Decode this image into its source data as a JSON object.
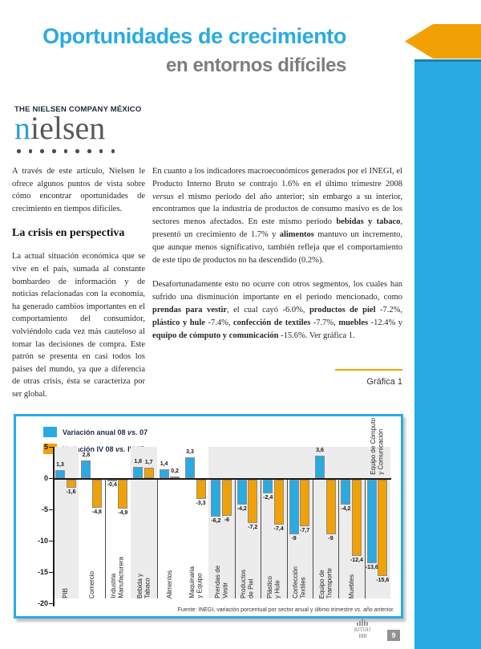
{
  "page": {
    "title_line1": "Oportunidades de crecimiento",
    "title_line2": "en entornos difíciles",
    "company_label": "THE NIELSEN COMPANY MÉXICO",
    "logo_first_letter": "n",
    "logo_rest": "ielsen",
    "footer_logo_text": "amai",
    "page_number": "9"
  },
  "colors": {
    "accent_blue": "#29ABE2",
    "accent_orange": "#F2A105",
    "title_gray": "#7C7E80",
    "band_gray": "#ECECEC",
    "bar_border": "#8C8C8C"
  },
  "article": {
    "intro": "A través de este artículo, Nielsen le ofrece algunos puntos de vista sobre cómo encontrar oportunidades de crecimiento en tiempos difíciles.",
    "section_heading": "La crisis en perspectiva",
    "left_paragraph": "La actual situación económica que se vive en el país, sumada al constante bombardeo de información y de noticias relacionadas con la economía, ha generado cambios importantes en el comportamiento del consumidor, volviéndolo cada vez más cauteloso al tomar las decisiones de compra. Este patrón se presenta en casi todos los países del mundo, ya que a diferencia de otras crisis, ésta se caracteriza por ser global.",
    "right_para1_segments": [
      {
        "t": "En cuanto a los indicadores macroeconómicos generados por el INEGI, el Producto Interno Bruto se contrajo 1.6% en el último trimestre 2008 "
      },
      {
        "t": "versus",
        "i": true
      },
      {
        "t": " el mismo periodo del año anterior; sin embargo a su interior, encontramos que la industria de productos de consumo masivo es de los sectores menos afectados. En este mismo periodo "
      },
      {
        "t": "bebidas y tabaco",
        "b": true
      },
      {
        "t": ",  presentó un crecimiento de 1.7% y "
      },
      {
        "t": "alimentos",
        "b": true
      },
      {
        "t": " mantuvo un incremento, que aunque menos significativo, también refleja que el comportamiento de este tipo de productos no ha descendido (0.2%)."
      }
    ],
    "right_para2_segments": [
      {
        "t": "Desafortunadamente esto no ocurre con otros segmentos, los cuales han sufrido una disminución importante en el periodo mencionado, como "
      },
      {
        "t": "prendas para vestir",
        "b": true
      },
      {
        "t": ", el cual cayó -6.0%, "
      },
      {
        "t": "productos de piel",
        "b": true
      },
      {
        "t": " -7.2%, "
      },
      {
        "t": "plástico y hule",
        "b": true
      },
      {
        "t": " -7.4%, "
      },
      {
        "t": "confección de textiles",
        "b": true
      },
      {
        "t": " -7.7%, "
      },
      {
        "t": "muebles",
        "b": true
      },
      {
        "t": " -12.4% y "
      },
      {
        "t": "equipo de cómputo y comunicación",
        "b": true
      },
      {
        "t": " -15.6%. Ver gráfica 1."
      }
    ],
    "chart_caption": "Gráfica 1"
  },
  "chart_data": {
    "type": "bar",
    "categories": [
      "PIB",
      "Comercio",
      "Industria Manufacturera",
      "Bebida y Tabaco",
      "Alimentos",
      "Maquinaria y Equipo",
      "Prendas de Vestir",
      "Productos de Piel",
      "Plástico y Hule",
      "Confección Textiles",
      "Equipo de Transporte",
      "Muebles",
      "Equipo de Cómputo y Comunicación"
    ],
    "categories_display": [
      "PIB",
      "Comercio",
      "Industria\nManufacturera",
      "Bebida y\nTabaco",
      "Alimentos",
      "Maquinaria\ny Equipo",
      "Prendas de\nVestir",
      "Productos\nde Piel",
      "Plástico\ny Hule",
      "Confección\nTextiles",
      "Equipo de\nTransporte",
      "Muebles",
      "Equipo de Cómputo\ny Comunicación"
    ],
    "series": [
      {
        "name_segments": [
          {
            "t": "Variación anual 08 "
          },
          {
            "t": "vs.",
            "i": true
          },
          {
            "t": " 07"
          }
        ],
        "color": "#29ABE2",
        "values": [
          1.3,
          2.8,
          -0.4,
          1.8,
          1.4,
          3.3,
          -6.2,
          -4.2,
          -2.4,
          -9,
          3.6,
          -4.2,
          -13.6
        ],
        "labels": [
          "1,3",
          "2,8",
          "-0,4",
          "1,8",
          "1,4",
          "3,3",
          "-6,2",
          "-4,2",
          "-2,4",
          "-9",
          "3,6",
          "-4,2",
          "-13,6"
        ]
      },
      {
        "name_segments": [
          {
            "t": "Variación IV 08 "
          },
          {
            "t": "vs.",
            "i": true
          },
          {
            "t": " IV 07"
          }
        ],
        "color": "#F2A105",
        "values": [
          -1.6,
          -4.8,
          -4.9,
          1.7,
          0.2,
          -3.3,
          -6,
          -7.2,
          -7.4,
          -7.7,
          -9,
          -12.4,
          -15.6
        ],
        "labels": [
          "-1,6",
          "-4,8",
          "-4,9",
          "1,7",
          "0,2",
          "-3,3",
          "-6",
          "-7,2",
          "-7,4",
          "-7,7",
          "-9",
          "-12,4",
          "-15,6"
        ]
      }
    ],
    "ylim": [
      -20,
      5
    ],
    "yticks": [
      5,
      0,
      -5,
      -10,
      -15,
      -20
    ],
    "grid": false,
    "legend_position": "top-left",
    "shaded_categories": [
      0,
      3,
      6,
      7,
      8,
      9,
      10,
      11,
      12
    ],
    "separators_after": [
      1,
      3,
      6,
      7,
      8,
      9,
      10,
      11
    ],
    "labels_above_axis": [
      12
    ],
    "source_segments": [
      {
        "t": "Fuente: INEGI, variación porcentual por sector anual y último trimestre "
      },
      {
        "t": "vs.",
        "i": true
      },
      {
        "t": " año anterior."
      }
    ]
  }
}
